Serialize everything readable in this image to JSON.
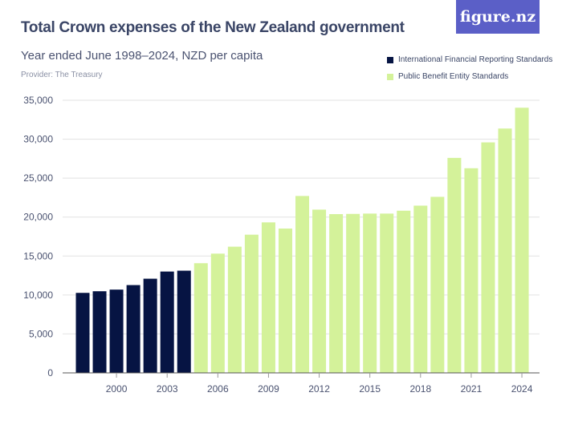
{
  "header": {
    "title": "Total Crown expenses of the New Zealand government",
    "subtitle": "Year ended June 1998–2024, NZD per capita",
    "provider": "Provider: The Treasury",
    "logo": "figure.nz"
  },
  "chart_data": {
    "type": "bar",
    "title": "Total Crown expenses of the New Zealand government",
    "subtitle": "Year ended June 1998–2024, NZD per capita",
    "categories": [
      1998,
      1999,
      2000,
      2001,
      2002,
      2003,
      2004,
      2005,
      2006,
      2007,
      2008,
      2009,
      2010,
      2011,
      2012,
      2013,
      2014,
      2015,
      2016,
      2017,
      2018,
      2019,
      2020,
      2021,
      2022,
      2023,
      2024
    ],
    "series": [
      {
        "name": "International Financial Reporting Standards",
        "color": "#061443",
        "values": [
          10270,
          10480,
          10690,
          11270,
          12090,
          13010,
          13120,
          null,
          null,
          null,
          null,
          null,
          null,
          null,
          null,
          null,
          null,
          null,
          null,
          null,
          null,
          null,
          null,
          null,
          null,
          null,
          null
        ]
      },
      {
        "name": "Public Benefit Entity Standards",
        "color": "#d4f29a",
        "values": [
          null,
          null,
          null,
          null,
          null,
          null,
          null,
          14080,
          15310,
          16200,
          17740,
          19320,
          18530,
          22710,
          20960,
          20380,
          20410,
          20450,
          20450,
          20820,
          21470,
          22600,
          27600,
          26270,
          29590,
          31370,
          34040
        ]
      }
    ],
    "ylim": [
      0,
      35000
    ],
    "yticks": [
      "0",
      "5,000",
      "10,000",
      "15,000",
      "20,000",
      "25,000",
      "30,000",
      "35,000"
    ],
    "xticks": [
      "2000",
      "2003",
      "2006",
      "2009",
      "2012",
      "2015",
      "2018",
      "2021",
      "2024"
    ],
    "grid": true,
    "legend": "top-right"
  }
}
